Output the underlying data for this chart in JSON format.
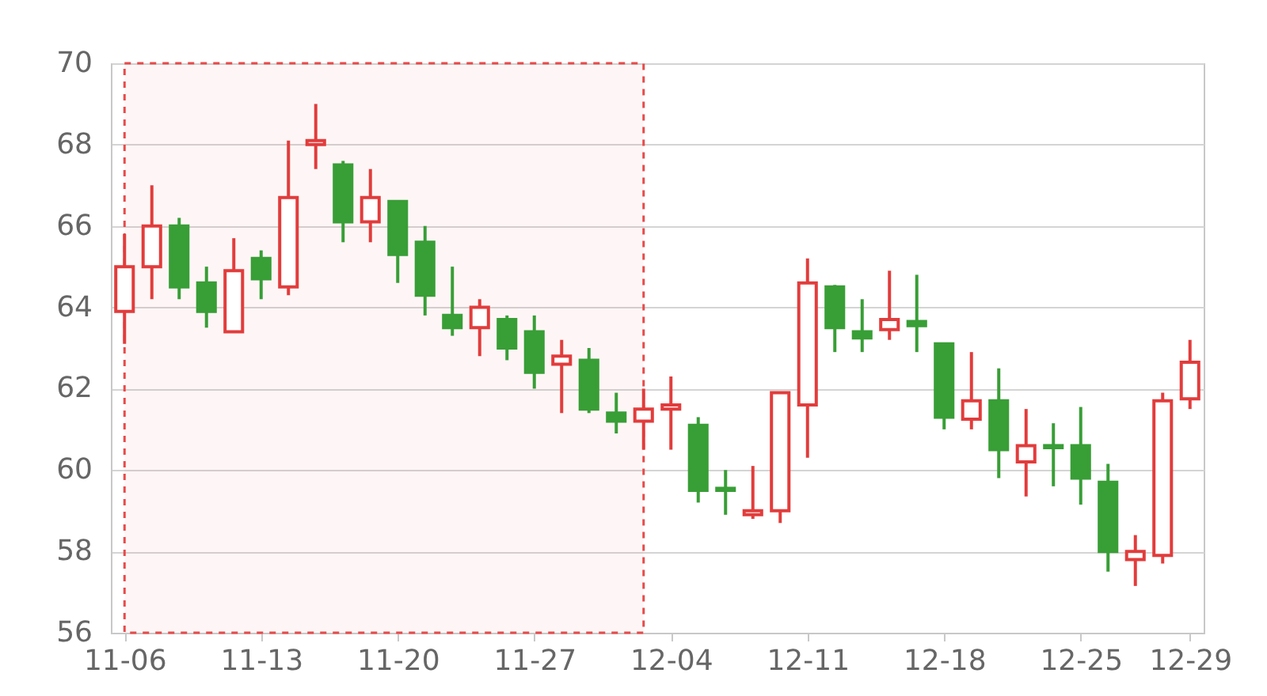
{
  "chart_data": {
    "type": "candlestick",
    "categories": [
      "11-06",
      null,
      null,
      null,
      null,
      "11-13",
      null,
      null,
      null,
      null,
      "11-20",
      null,
      null,
      null,
      null,
      "11-27",
      null,
      null,
      null,
      null,
      "12-04",
      null,
      null,
      null,
      null,
      "12-11",
      null,
      null,
      null,
      null,
      "12-18",
      null,
      null,
      null,
      null,
      "12-25",
      null,
      null,
      null,
      "12-29"
    ],
    "ohlc": [
      [
        63.9,
        65.8,
        63.1,
        65.0
      ],
      [
        65.0,
        67.0,
        64.2,
        66.0
      ],
      [
        66.0,
        66.2,
        64.2,
        64.5
      ],
      [
        64.6,
        65.0,
        63.5,
        63.9
      ],
      [
        63.4,
        65.7,
        63.4,
        64.9
      ],
      [
        65.2,
        65.4,
        64.2,
        64.7
      ],
      [
        64.5,
        68.1,
        64.3,
        66.7
      ],
      [
        68.0,
        69.0,
        67.4,
        68.1
      ],
      [
        67.5,
        67.6,
        65.6,
        66.1
      ],
      [
        66.1,
        67.4,
        65.6,
        66.7
      ],
      [
        66.6,
        66.6,
        64.6,
        65.3
      ],
      [
        65.6,
        66.0,
        63.8,
        64.3
      ],
      [
        63.8,
        65.0,
        63.3,
        63.5
      ],
      [
        63.5,
        64.2,
        62.8,
        64.0
      ],
      [
        63.7,
        63.8,
        62.7,
        63.0
      ],
      [
        63.4,
        63.8,
        62.0,
        62.4
      ],
      [
        62.6,
        63.2,
        61.4,
        62.8
      ],
      [
        62.7,
        63.0,
        61.4,
        61.5
      ],
      [
        61.4,
        61.9,
        60.9,
        61.2
      ],
      [
        61.2,
        62.0,
        60.5,
        61.5
      ],
      [
        61.5,
        62.3,
        60.5,
        61.6
      ],
      [
        61.1,
        61.3,
        59.2,
        59.5
      ],
      [
        59.55,
        60.0,
        58.9,
        59.5
      ],
      [
        58.9,
        60.1,
        58.8,
        59.0
      ],
      [
        59.0,
        61.9,
        58.7,
        61.9
      ],
      [
        61.6,
        65.2,
        60.3,
        64.6
      ],
      [
        64.5,
        64.55,
        62.9,
        63.5
      ],
      [
        63.4,
        64.2,
        62.9,
        63.25
      ],
      [
        63.45,
        64.9,
        63.2,
        63.7
      ],
      [
        63.65,
        64.8,
        62.9,
        63.55
      ],
      [
        63.1,
        63.1,
        61.0,
        61.3
      ],
      [
        61.25,
        62.9,
        61.0,
        61.7
      ],
      [
        61.7,
        62.5,
        59.8,
        60.5
      ],
      [
        60.2,
        61.5,
        59.35,
        60.6
      ],
      [
        60.6,
        61.15,
        59.6,
        60.55
      ],
      [
        60.6,
        61.55,
        59.15,
        59.8
      ],
      [
        59.7,
        60.15,
        57.5,
        58.0
      ],
      [
        57.8,
        58.4,
        57.15,
        58.0
      ],
      [
        57.9,
        61.9,
        57.7,
        61.7
      ],
      [
        61.75,
        63.2,
        61.5,
        62.65
      ]
    ],
    "colors": [
      "#e23c3c",
      "#e23c3c",
      "#389e36",
      "#389e36",
      "#e23c3c",
      "#389e36",
      "#e23c3c",
      "#e23c3c",
      "#389e36",
      "#e23c3c",
      "#389e36",
      "#389e36",
      "#389e36",
      "#e23c3c",
      "#389e36",
      "#389e36",
      "#e23c3c",
      "#389e36",
      "#389e36",
      "#e23c3c",
      "#e23c3c",
      "#389e36",
      "#389e36",
      "#e23c3c",
      "#e23c3c",
      "#e23c3c",
      "#389e36",
      "#389e36",
      "#e23c3c",
      "#389e36",
      "#389e36",
      "#e23c3c",
      "#389e36",
      "#e23c3c",
      "#389e36",
      "#389e36",
      "#389e36",
      "#e23c3c",
      "#e23c3c",
      "#e23c3c"
    ],
    "ylim": [
      56,
      70
    ],
    "yticks": [
      56,
      58,
      60,
      62,
      64,
      66,
      68,
      70
    ],
    "grid": "y"
  }
}
